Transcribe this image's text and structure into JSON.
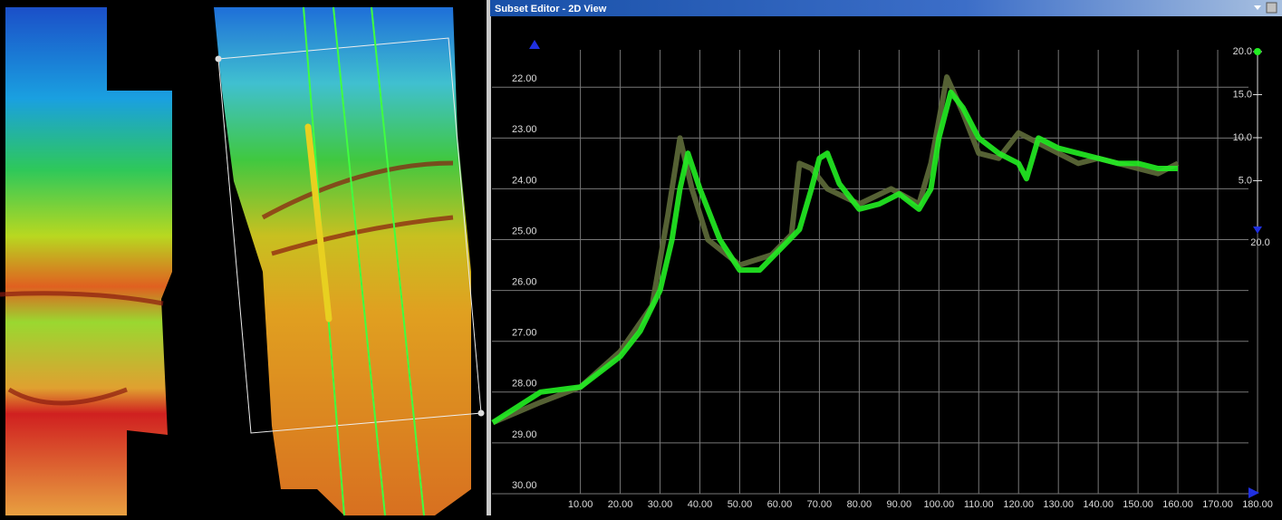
{
  "window": {
    "title": "Subset Editor - 2D View"
  },
  "chart_data": {
    "type": "line",
    "y_inverted": true,
    "xlim": [
      -12.2,
      185
    ],
    "ylim": [
      20.73,
      30
    ],
    "xticks": [
      {
        "value": 10,
        "label": "10.00"
      },
      {
        "value": 20,
        "label": "20.00"
      },
      {
        "value": 30,
        "label": "30.00"
      },
      {
        "value": 40,
        "label": "40.00"
      },
      {
        "value": 50,
        "label": "50.00"
      },
      {
        "value": 60,
        "label": "60.00"
      },
      {
        "value": 70,
        "label": "70.00"
      },
      {
        "value": 80,
        "label": "80.00"
      },
      {
        "value": 90,
        "label": "90.00"
      },
      {
        "value": 100,
        "label": "100.00"
      },
      {
        "value": 110,
        "label": "110.00"
      },
      {
        "value": 120,
        "label": "120.00"
      },
      {
        "value": 130,
        "label": "130.00"
      },
      {
        "value": 140,
        "label": "140.00"
      },
      {
        "value": 150,
        "label": "150.00"
      },
      {
        "value": 160,
        "label": "160.00"
      },
      {
        "value": 170,
        "label": "170.00"
      },
      {
        "value": 180,
        "label": "180.00"
      }
    ],
    "yticks": [
      {
        "value": 22,
        "label": "22.00"
      },
      {
        "value": 23,
        "label": "23.00"
      },
      {
        "value": 24,
        "label": "24.00"
      },
      {
        "value": 25,
        "label": "25.00"
      },
      {
        "value": 26,
        "label": "26.00"
      },
      {
        "value": 27,
        "label": "27.00"
      },
      {
        "value": 28,
        "label": "28.00"
      },
      {
        "value": 29,
        "label": "29.00"
      },
      {
        "value": 30,
        "label": "30.00"
      }
    ],
    "grid": true,
    "series": [
      {
        "color": "#5e6b3a",
        "x": [
          -12,
          0,
          10,
          20,
          28,
          32,
          35,
          38,
          42,
          50,
          58,
          63,
          65,
          68,
          72,
          80,
          88,
          95,
          98,
          102,
          106,
          110,
          115,
          120,
          125,
          130,
          135,
          140,
          145,
          150,
          155,
          160
        ],
        "values": [
          28.6,
          28.2,
          27.9,
          27.2,
          26.3,
          24.5,
          23.0,
          24.0,
          25.0,
          25.5,
          25.3,
          24.9,
          23.5,
          23.6,
          24.0,
          24.3,
          24.0,
          24.3,
          23.5,
          21.8,
          22.5,
          23.3,
          23.4,
          22.9,
          23.1,
          23.3,
          23.5,
          23.4,
          23.5,
          23.6,
          23.7,
          23.5
        ]
      },
      {
        "color": "#22ee22",
        "x": [
          -12,
          0,
          10,
          20,
          25,
          30,
          33,
          35,
          37,
          40,
          45,
          50,
          55,
          60,
          65,
          68,
          70,
          72,
          75,
          80,
          85,
          90,
          95,
          98,
          100,
          103,
          106,
          110,
          115,
          120,
          122,
          125,
          130,
          135,
          140,
          145,
          150,
          155,
          160
        ],
        "values": [
          28.6,
          28.0,
          27.9,
          27.3,
          26.8,
          26.0,
          25.0,
          24.0,
          23.3,
          24.0,
          25.0,
          25.6,
          25.6,
          25.2,
          24.8,
          24.0,
          23.4,
          23.3,
          23.9,
          24.4,
          24.3,
          24.1,
          24.4,
          24.0,
          23.0,
          22.1,
          22.4,
          23.0,
          23.3,
          23.5,
          23.8,
          23.0,
          23.2,
          23.3,
          23.4,
          23.5,
          23.5,
          23.6,
          23.6
        ]
      }
    ]
  },
  "slider": {
    "labels": [
      "20.0",
      "15.0",
      "10.0",
      "5.0"
    ],
    "bottom_label": "20.0"
  }
}
